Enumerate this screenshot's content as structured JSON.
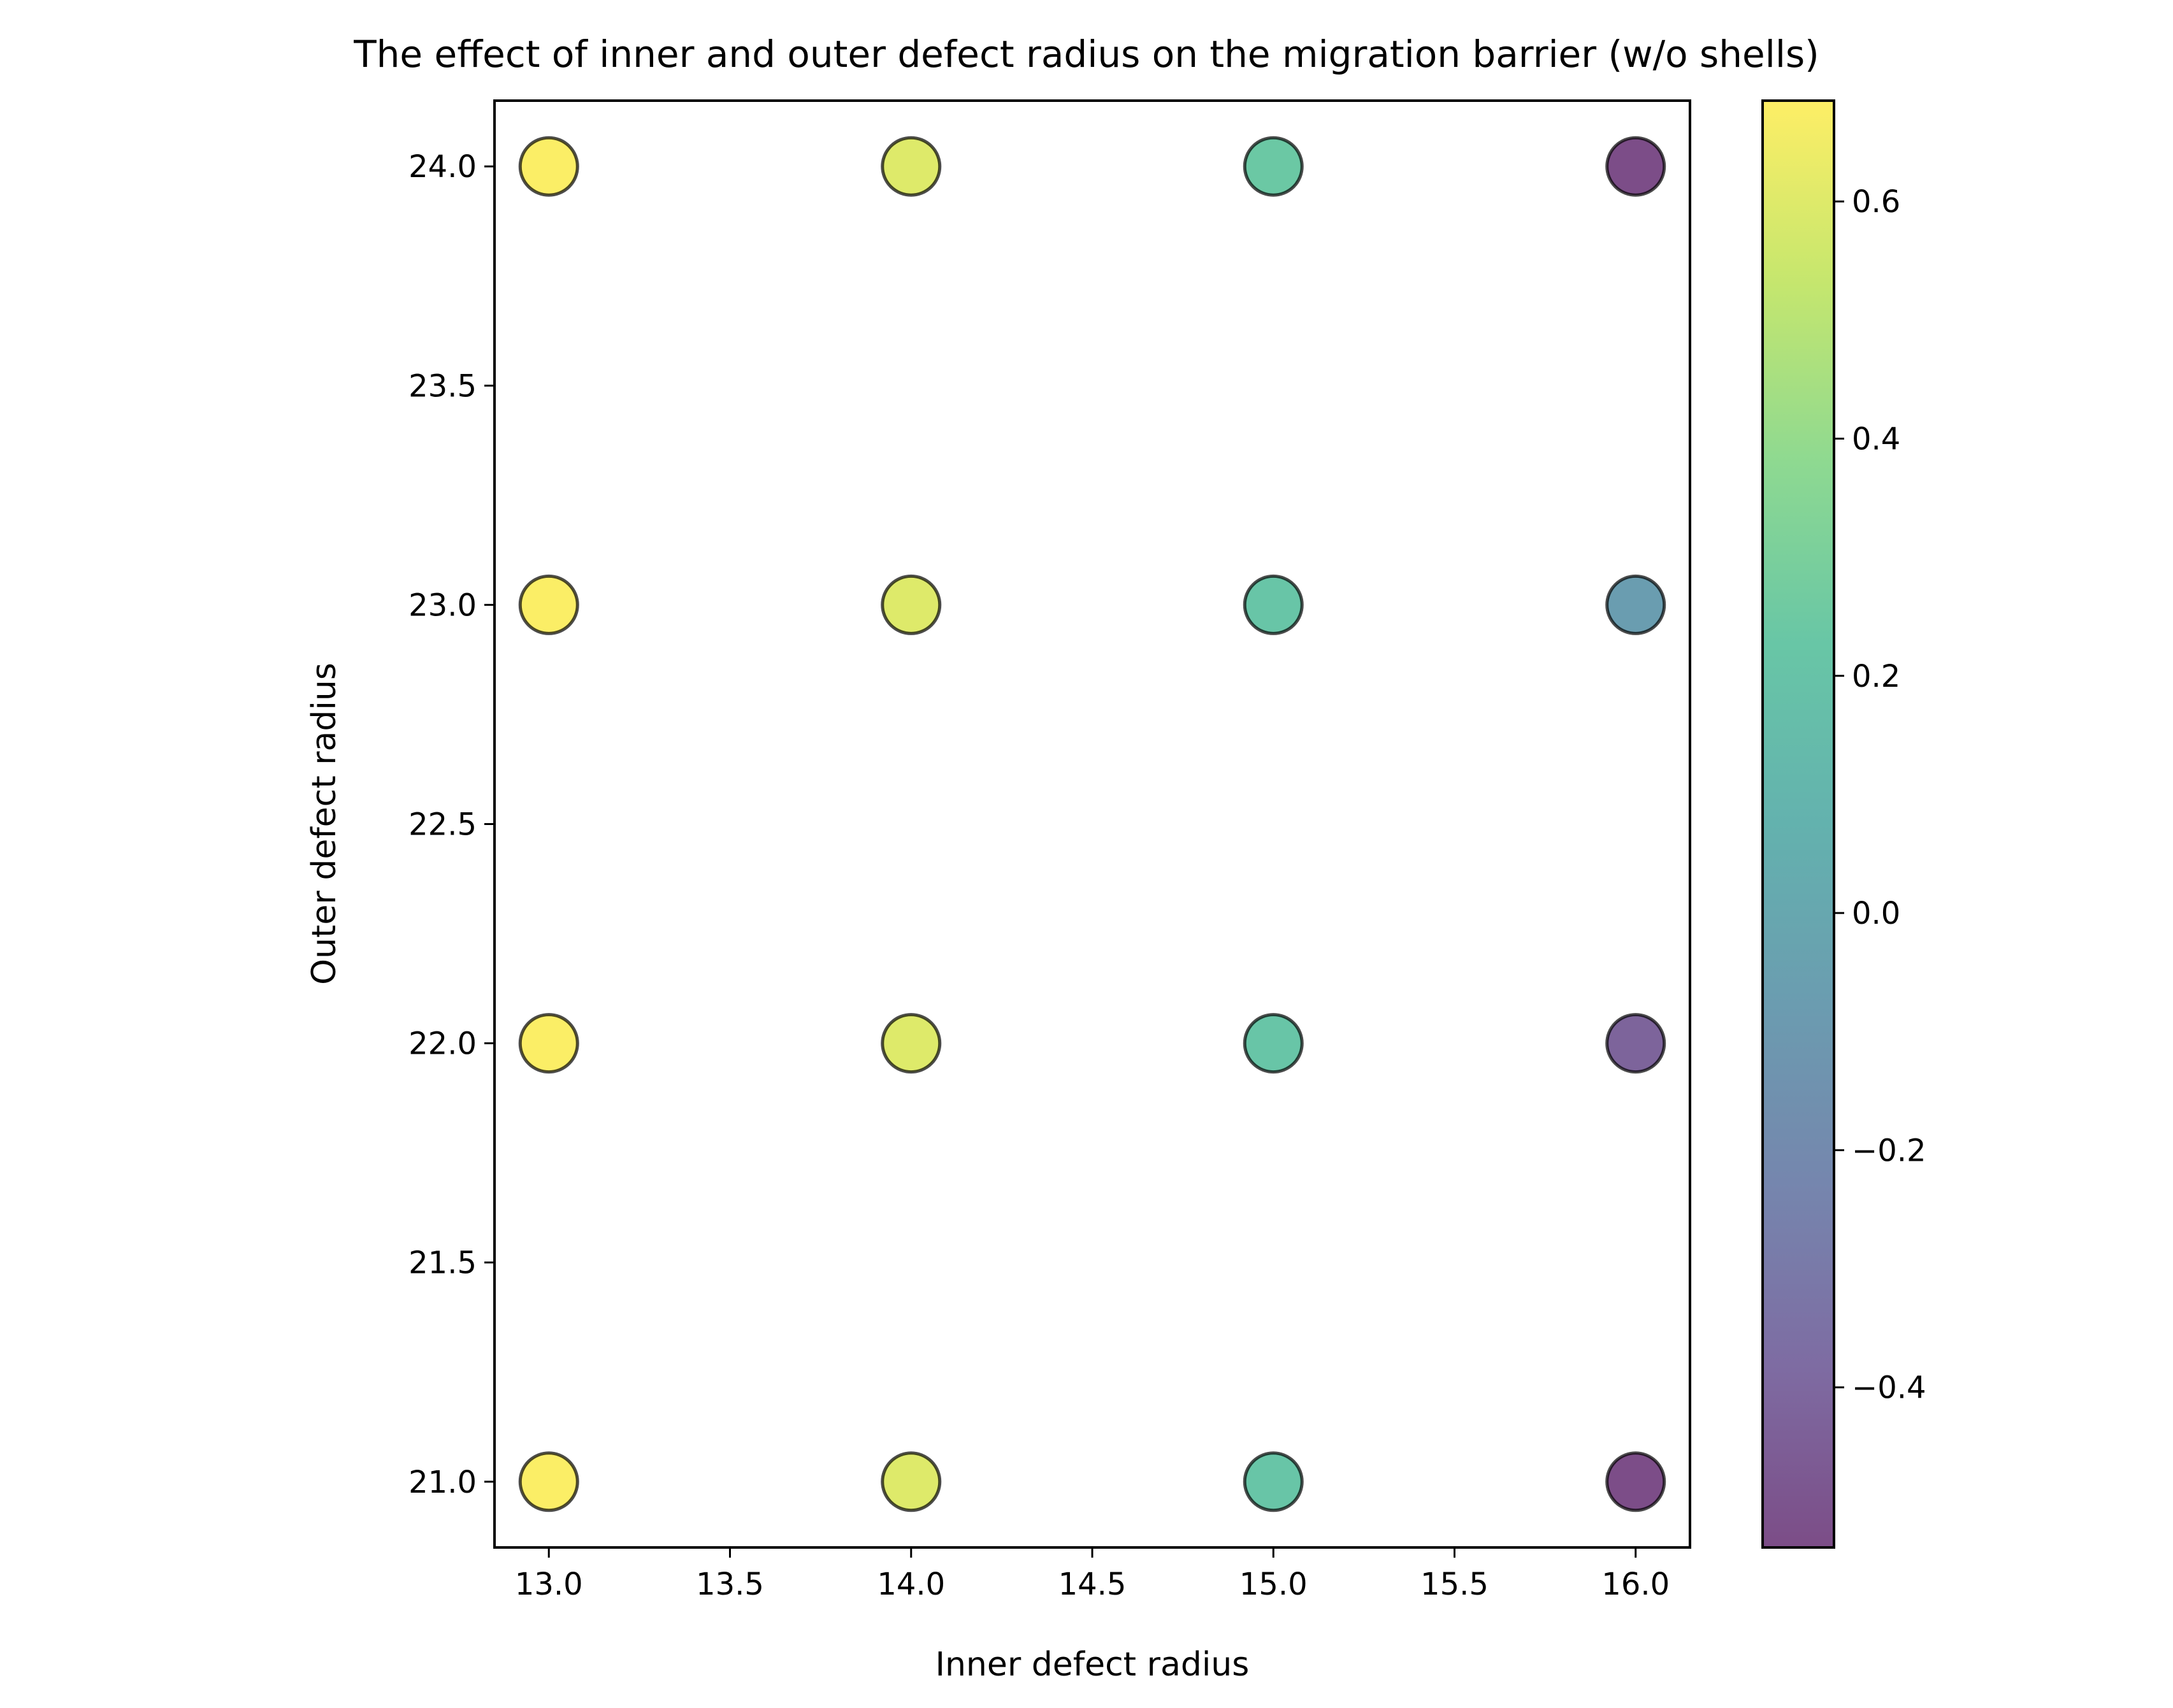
{
  "chart_data": {
    "type": "scatter",
    "title": "The effect of inner and outer defect radius on the migration barrier (w/o shells)",
    "xlabel": "Inner defect radius",
    "ylabel": "Outer defect radius",
    "xlim": [
      12.85,
      16.15
    ],
    "ylim": [
      20.85,
      24.15
    ],
    "xticks": [
      "13.0",
      "13.5",
      "14.0",
      "14.5",
      "15.0",
      "15.5",
      "16.0"
    ],
    "yticks": [
      "21.0",
      "21.5",
      "22.0",
      "22.5",
      "23.0",
      "23.5",
      "24.0"
    ],
    "grid": false,
    "colormap": "viridis",
    "marker_alpha": 0.7,
    "marker_edge_color": "#000000",
    "points": [
      {
        "x": 13,
        "y": 24,
        "value": 0.68
      },
      {
        "x": 14,
        "y": 24,
        "value": 0.6
      },
      {
        "x": 15,
        "y": 24,
        "value": 0.24
      },
      {
        "x": 16,
        "y": 24,
        "value": -0.53
      },
      {
        "x": 13,
        "y": 23,
        "value": 0.68
      },
      {
        "x": 14,
        "y": 23,
        "value": 0.6
      },
      {
        "x": 15,
        "y": 23,
        "value": 0.22
      },
      {
        "x": 16,
        "y": 23,
        "value": -0.07
      },
      {
        "x": 13,
        "y": 22,
        "value": 0.68
      },
      {
        "x": 14,
        "y": 22,
        "value": 0.6
      },
      {
        "x": 15,
        "y": 22,
        "value": 0.22
      },
      {
        "x": 16,
        "y": 22,
        "value": -0.42
      },
      {
        "x": 13,
        "y": 21,
        "value": 0.68
      },
      {
        "x": 14,
        "y": 21,
        "value": 0.6
      },
      {
        "x": 15,
        "y": 21,
        "value": 0.22
      },
      {
        "x": 16,
        "y": 21,
        "value": -0.53
      }
    ],
    "colorbar": {
      "range": [
        -0.535,
        0.685
      ],
      "ticks": [
        {
          "value": 0.6,
          "label": "0.6"
        },
        {
          "value": 0.4,
          "label": "0.4"
        },
        {
          "value": 0.2,
          "label": "0.2"
        },
        {
          "value": 0.0,
          "label": "0.0"
        },
        {
          "value": -0.2,
          "label": "−0.2"
        },
        {
          "value": -0.4,
          "label": "−0.4"
        }
      ]
    }
  }
}
